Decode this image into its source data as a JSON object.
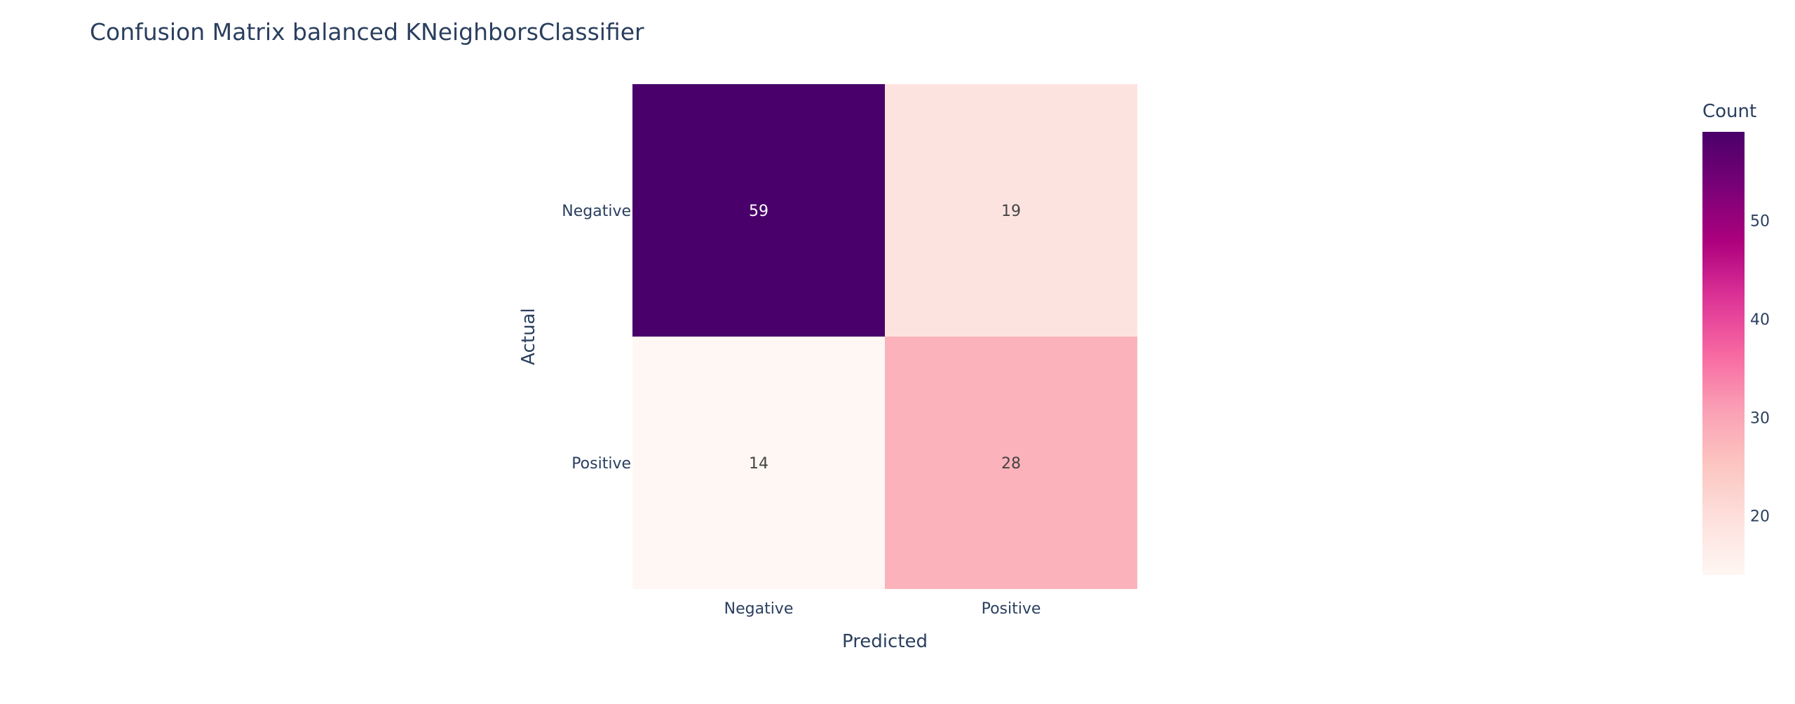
{
  "chart_data": {
    "type": "heatmap",
    "title": "Confusion Matrix balanced KNeighborsClassifier",
    "xlabel": "Predicted",
    "ylabel": "Actual",
    "x_categories": [
      "Negative",
      "Positive"
    ],
    "y_categories": [
      "Negative",
      "Positive"
    ],
    "values": [
      [
        59,
        19
      ],
      [
        14,
        28
      ]
    ],
    "colorbar": {
      "title": "Count",
      "range": [
        14,
        59
      ],
      "ticks": [
        20,
        30,
        40,
        50
      ],
      "colorscale": [
        "#fff7f3",
        "#fde0dd",
        "#fcc5c0",
        "#fa9fb5",
        "#f768a1",
        "#dd3497",
        "#ae017e",
        "#7a0177",
        "#49006a"
      ]
    }
  }
}
